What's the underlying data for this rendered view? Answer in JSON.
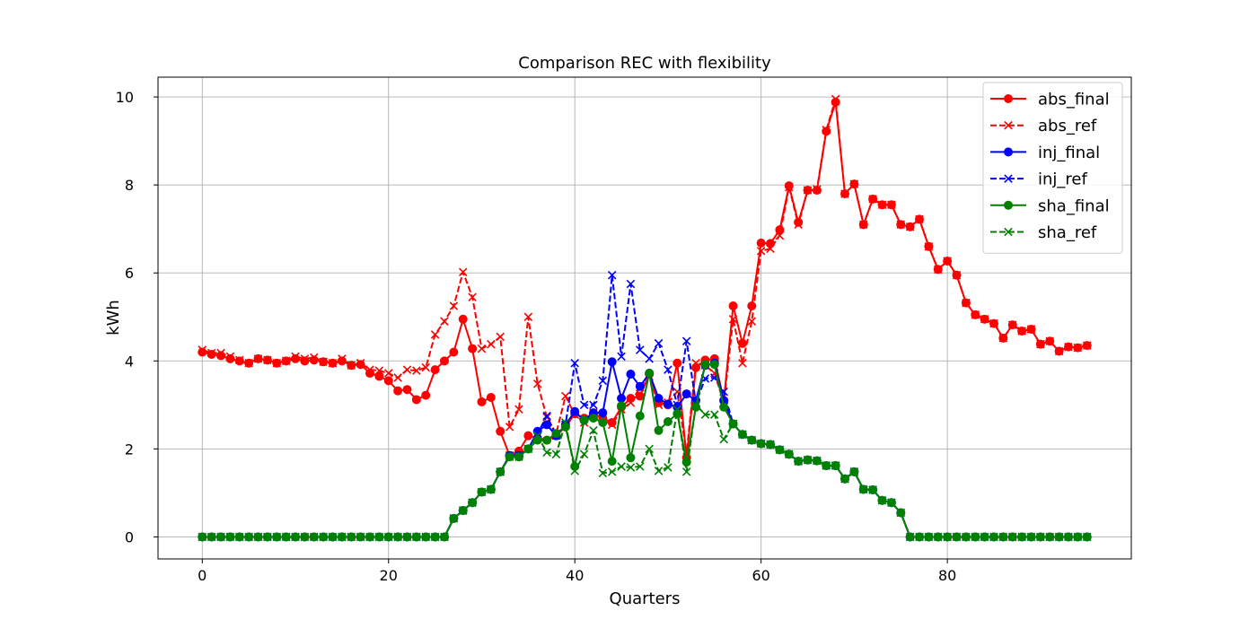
{
  "chart_data": {
    "type": "line",
    "title": "Comparison REC with flexibility",
    "xlabel": "Quarters",
    "ylabel": "kWh",
    "xlim": [
      -4.75,
      99.75
    ],
    "ylim": [
      -0.5,
      10.45
    ],
    "xticks": [
      0,
      20,
      40,
      60,
      80
    ],
    "yticks": [
      0,
      2,
      4,
      6,
      8,
      10
    ],
    "grid": true,
    "legend_position": "top-right",
    "series": [
      {
        "name": "abs_final",
        "color": "#ff0000",
        "linestyle": "solid",
        "marker": "circle",
        "values": [
          4.2,
          4.15,
          4.12,
          4.05,
          4.0,
          3.95,
          4.05,
          4.02,
          3.95,
          4.0,
          4.05,
          4.0,
          4.02,
          3.98,
          3.95,
          4.0,
          3.9,
          3.92,
          3.72,
          3.65,
          3.55,
          3.32,
          3.35,
          3.12,
          3.22,
          3.8,
          4.0,
          4.2,
          4.95,
          4.28,
          3.07,
          3.17,
          2.4,
          1.85,
          1.95,
          2.3,
          2.25,
          2.2,
          2.3,
          2.5,
          2.8,
          2.7,
          2.8,
          2.7,
          2.6,
          2.95,
          3.15,
          3.2,
          3.7,
          3.05,
          3.0,
          3.95,
          1.8,
          3.85,
          4.02,
          4.05,
          3.1,
          5.25,
          4.4,
          5.25,
          6.68,
          6.67,
          6.98,
          7.98,
          7.15,
          7.88,
          7.88,
          9.22,
          9.88,
          7.8,
          8.02,
          7.1,
          7.68,
          7.55,
          7.55,
          7.1,
          7.05,
          7.22,
          6.6,
          6.08,
          6.27,
          5.95,
          5.32,
          5.05,
          4.95,
          4.85,
          4.52,
          4.82,
          4.68,
          4.72,
          4.38,
          4.45,
          4.22,
          4.32,
          4.3,
          4.35
        ]
      },
      {
        "name": "abs_ref",
        "color": "#ff0000",
        "linestyle": "dashed",
        "marker": "x",
        "values": [
          4.25,
          4.18,
          4.18,
          4.1,
          4.02,
          3.95,
          4.05,
          4.02,
          3.95,
          4.0,
          4.1,
          4.05,
          4.08,
          3.98,
          3.95,
          4.05,
          3.9,
          3.95,
          3.8,
          3.78,
          3.72,
          3.62,
          3.8,
          3.78,
          3.85,
          4.6,
          4.9,
          5.25,
          6.02,
          5.45,
          4.28,
          4.38,
          4.55,
          2.5,
          2.9,
          5.0,
          3.48,
          2.72,
          2.35,
          3.2,
          2.78,
          2.6,
          2.82,
          2.65,
          2.55,
          2.9,
          3.05,
          3.4,
          3.65,
          3.0,
          3.05,
          3.3,
          1.9,
          3.95,
          3.9,
          3.72,
          3.05,
          4.95,
          3.95,
          4.9,
          6.5,
          6.55,
          6.85,
          7.95,
          7.1,
          7.88,
          7.9,
          9.25,
          9.95,
          7.8,
          8.02,
          7.1,
          7.68,
          7.55,
          7.55,
          7.1,
          7.05,
          7.22,
          6.6,
          6.08,
          6.27,
          5.95,
          5.32,
          5.05,
          4.95,
          4.85,
          4.52,
          4.82,
          4.68,
          4.72,
          4.38,
          4.45,
          4.22,
          4.32,
          4.3,
          4.35
        ]
      },
      {
        "name": "inj_final",
        "color": "#0000ff",
        "linestyle": "solid",
        "marker": "circle",
        "values": [
          0,
          0,
          0,
          0,
          0,
          0,
          0,
          0,
          0,
          0,
          0,
          0,
          0,
          0,
          0,
          0,
          0,
          0,
          0,
          0,
          0,
          0,
          0,
          0,
          0,
          0,
          0,
          0.42,
          0.6,
          0.78,
          1.02,
          1.08,
          1.48,
          1.85,
          1.85,
          2.0,
          2.4,
          2.55,
          2.3,
          2.55,
          2.85,
          2.65,
          2.82,
          2.82,
          3.98,
          3.15,
          3.7,
          3.42,
          3.72,
          3.15,
          3.02,
          2.95,
          3.25,
          3.1,
          3.9,
          3.95,
          3.1,
          2.57,
          2.33,
          2.2,
          2.12,
          2.1,
          1.98,
          1.88,
          1.72,
          1.75,
          1.73,
          1.62,
          1.62,
          1.32,
          1.48,
          1.08,
          1.07,
          0.83,
          0.78,
          0.55,
          0,
          0,
          0,
          0,
          0,
          0,
          0,
          0,
          0,
          0,
          0,
          0,
          0,
          0,
          0,
          0,
          0,
          0,
          0,
          0
        ]
      },
      {
        "name": "inj_ref",
        "color": "#0000ff",
        "linestyle": "dashed",
        "marker": "x",
        "values": [
          0,
          0,
          0,
          0,
          0,
          0,
          0,
          0,
          0,
          0,
          0,
          0,
          0,
          0,
          0,
          0,
          0,
          0,
          0,
          0,
          0,
          0,
          0,
          0,
          0,
          0,
          0,
          0.42,
          0.6,
          0.78,
          1.02,
          1.08,
          1.48,
          1.85,
          1.85,
          2.0,
          2.35,
          2.75,
          2.3,
          2.55,
          3.95,
          3.0,
          3.0,
          3.55,
          5.95,
          4.1,
          5.75,
          4.25,
          4.05,
          4.4,
          3.8,
          3.0,
          4.45,
          3.05,
          3.6,
          3.62,
          3.3,
          2.57,
          2.33,
          2.2,
          2.12,
          2.1,
          1.98,
          1.88,
          1.72,
          1.75,
          1.73,
          1.62,
          1.62,
          1.32,
          1.48,
          1.08,
          1.07,
          0.83,
          0.78,
          0.55,
          0,
          0,
          0,
          0,
          0,
          0,
          0,
          0,
          0,
          0,
          0,
          0,
          0,
          0,
          0,
          0,
          0,
          0,
          0,
          0
        ]
      },
      {
        "name": "sha_final",
        "color": "#008000",
        "linestyle": "solid",
        "marker": "circle",
        "values": [
          0,
          0,
          0,
          0,
          0,
          0,
          0,
          0,
          0,
          0,
          0,
          0,
          0,
          0,
          0,
          0,
          0,
          0,
          0,
          0,
          0,
          0,
          0,
          0,
          0,
          0,
          0,
          0.42,
          0.6,
          0.78,
          1.02,
          1.08,
          1.48,
          1.82,
          1.82,
          2.0,
          2.2,
          2.2,
          2.35,
          2.5,
          1.6,
          2.65,
          2.7,
          2.6,
          1.72,
          2.98,
          1.8,
          2.75,
          3.72,
          2.42,
          2.62,
          2.8,
          1.7,
          2.95,
          3.92,
          3.92,
          2.95,
          2.57,
          2.33,
          2.2,
          2.12,
          2.1,
          1.98,
          1.88,
          1.72,
          1.75,
          1.73,
          1.62,
          1.62,
          1.32,
          1.48,
          1.08,
          1.07,
          0.83,
          0.78,
          0.55,
          0,
          0,
          0,
          0,
          0,
          0,
          0,
          0,
          0,
          0,
          0,
          0,
          0,
          0,
          0,
          0,
          0,
          0,
          0,
          0
        ]
      },
      {
        "name": "sha_ref",
        "color": "#008000",
        "linestyle": "dashed",
        "marker": "x",
        "values": [
          0,
          0,
          0,
          0,
          0,
          0,
          0,
          0,
          0,
          0,
          0,
          0,
          0,
          0,
          0,
          0,
          0,
          0,
          0,
          0,
          0,
          0,
          0,
          0,
          0,
          0,
          0,
          0.42,
          0.6,
          0.78,
          1.02,
          1.08,
          1.48,
          1.82,
          1.82,
          2.0,
          2.3,
          1.92,
          1.88,
          2.6,
          1.5,
          1.88,
          2.42,
          1.45,
          1.48,
          1.6,
          1.58,
          1.6,
          2.0,
          1.5,
          1.58,
          2.9,
          1.48,
          3.0,
          2.78,
          2.78,
          2.22,
          2.57,
          2.33,
          2.2,
          2.12,
          2.1,
          1.98,
          1.88,
          1.72,
          1.75,
          1.73,
          1.62,
          1.62,
          1.32,
          1.48,
          1.08,
          1.07,
          0.83,
          0.78,
          0.55,
          0,
          0,
          0,
          0,
          0,
          0,
          0,
          0,
          0,
          0,
          0,
          0,
          0,
          0,
          0,
          0,
          0,
          0,
          0,
          0
        ]
      }
    ]
  }
}
